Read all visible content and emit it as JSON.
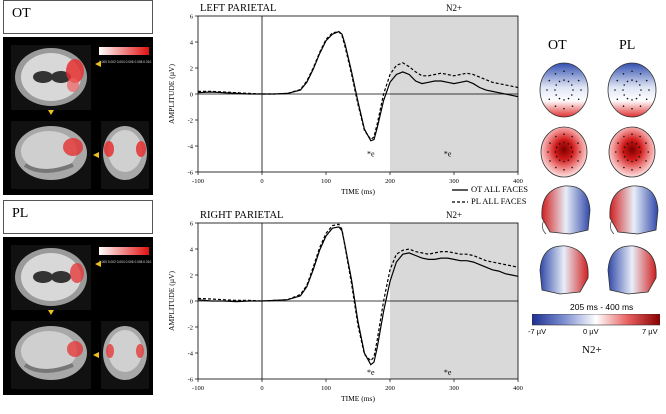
{
  "left_panels": [
    {
      "label": "OT",
      "colorbar_ticks": "0.000  0.002  0.004  0.006  0.008  0.010"
    },
    {
      "label": "PL",
      "colorbar_ticks": "0.000  0.002  0.004  0.006  0.008  0.010"
    }
  ],
  "legend": {
    "ot": "OT ALL FACES",
    "pl": "PL ALL FACES"
  },
  "topo": {
    "col_ot": "OT",
    "col_pl": "PL",
    "window": "205 ms - 400 ms",
    "cbar_min": "-7 µV",
    "cbar_mid": "0 µV",
    "cbar_max": "7 µV",
    "component": "N2+"
  },
  "chart_data": [
    {
      "type": "line",
      "title": "LEFT PARIETAL",
      "shaded_label": "N2+",
      "shaded_range": [
        200,
        400
      ],
      "xlabel": "TIME (ms)",
      "ylabel": "AMPLITUDE (µV)",
      "xlim": [
        -100,
        400
      ],
      "ylim": [
        -6,
        6
      ],
      "xticks": [
        -100,
        0,
        100,
        200,
        300,
        400
      ],
      "yticks": [
        -6,
        -4,
        -2,
        0,
        2,
        4,
        6
      ],
      "annotations": [
        {
          "text": "*e",
          "x": 170,
          "y": -4.8
        },
        {
          "text": "*e",
          "x": 290,
          "y": -4.8
        }
      ],
      "x": [
        -100,
        -80,
        -60,
        -40,
        -20,
        0,
        20,
        40,
        60,
        70,
        80,
        90,
        100,
        110,
        120,
        125,
        130,
        140,
        150,
        160,
        170,
        175,
        180,
        190,
        200,
        210,
        220,
        230,
        240,
        250,
        260,
        270,
        280,
        290,
        300,
        310,
        320,
        330,
        340,
        350,
        360,
        370,
        380,
        390,
        400
      ],
      "series": [
        {
          "name": "OT ALL FACES",
          "style": "solid",
          "values": [
            0.1,
            0.15,
            0.1,
            0.05,
            0.0,
            0.0,
            0.0,
            0.05,
            0.3,
            0.9,
            1.9,
            3.1,
            4.1,
            4.6,
            4.8,
            4.6,
            3.8,
            1.7,
            -0.6,
            -2.7,
            -3.6,
            -3.5,
            -2.6,
            -0.5,
            0.9,
            1.5,
            1.7,
            1.5,
            1.0,
            0.8,
            0.9,
            1.0,
            1.0,
            0.9,
            0.8,
            0.9,
            1.0,
            0.8,
            0.5,
            0.3,
            0.2,
            0.1,
            0.0,
            -0.1,
            -0.2
          ]
        },
        {
          "name": "PL ALL FACES",
          "style": "dashed",
          "values": [
            0.2,
            0.2,
            0.15,
            0.1,
            0.05,
            0.0,
            0.0,
            0.05,
            0.35,
            1.0,
            2.0,
            3.2,
            4.2,
            4.7,
            4.8,
            4.5,
            3.6,
            1.5,
            -0.8,
            -2.8,
            -3.5,
            -3.3,
            -2.3,
            0.0,
            1.5,
            2.2,
            2.4,
            2.1,
            1.7,
            1.4,
            1.4,
            1.5,
            1.6,
            1.5,
            1.4,
            1.5,
            1.6,
            1.5,
            1.3,
            1.1,
            0.9,
            0.8,
            0.7,
            0.6,
            0.5
          ]
        }
      ]
    },
    {
      "type": "line",
      "title": "RIGHT PARIETAL",
      "shaded_label": "N2+",
      "shaded_range": [
        200,
        400
      ],
      "xlabel": "TIME (ms)",
      "ylabel": "AMPLITUDE (µV)",
      "xlim": [
        -100,
        400
      ],
      "ylim": [
        -6,
        6
      ],
      "xticks": [
        -100,
        0,
        100,
        200,
        300,
        400
      ],
      "yticks": [
        -6,
        -4,
        -2,
        0,
        2,
        4,
        6
      ],
      "annotations": [
        {
          "text": "*e",
          "x": 170,
          "y": -5.7
        },
        {
          "text": "*e",
          "x": 290,
          "y": -5.7
        }
      ],
      "x": [
        -100,
        -80,
        -60,
        -40,
        -20,
        0,
        20,
        40,
        60,
        70,
        80,
        90,
        100,
        110,
        120,
        125,
        130,
        140,
        150,
        160,
        170,
        175,
        180,
        190,
        200,
        210,
        220,
        230,
        240,
        250,
        260,
        270,
        280,
        290,
        300,
        310,
        320,
        330,
        340,
        350,
        360,
        370,
        380,
        390,
        400
      ],
      "series": [
        {
          "name": "OT ALL FACES",
          "style": "solid",
          "values": [
            0.1,
            0.0,
            0.0,
            -0.05,
            0.0,
            0.0,
            0.05,
            0.1,
            0.4,
            1.1,
            2.4,
            3.9,
            5.0,
            5.6,
            5.7,
            5.4,
            4.2,
            1.6,
            -1.6,
            -4.0,
            -4.9,
            -4.7,
            -3.6,
            -0.8,
            1.5,
            3.0,
            3.6,
            3.7,
            3.5,
            3.3,
            3.2,
            3.2,
            3.3,
            3.3,
            3.2,
            3.1,
            3.1,
            3.0,
            2.8,
            2.6,
            2.4,
            2.3,
            2.1,
            2.0,
            1.9
          ]
        },
        {
          "name": "PL ALL FACES",
          "style": "dashed",
          "values": [
            0.2,
            0.15,
            0.1,
            0.05,
            0.05,
            0.0,
            0.05,
            0.1,
            0.5,
            1.2,
            2.6,
            4.1,
            5.2,
            5.8,
            5.9,
            5.5,
            4.1,
            1.3,
            -1.9,
            -4.1,
            -4.6,
            -4.3,
            -3.0,
            0.0,
            2.4,
            3.6,
            3.9,
            4.0,
            3.8,
            3.7,
            3.6,
            3.7,
            3.8,
            3.8,
            3.7,
            3.6,
            3.6,
            3.5,
            3.3,
            3.1,
            3.0,
            2.9,
            2.8,
            2.7,
            2.6
          ]
        }
      ]
    }
  ]
}
